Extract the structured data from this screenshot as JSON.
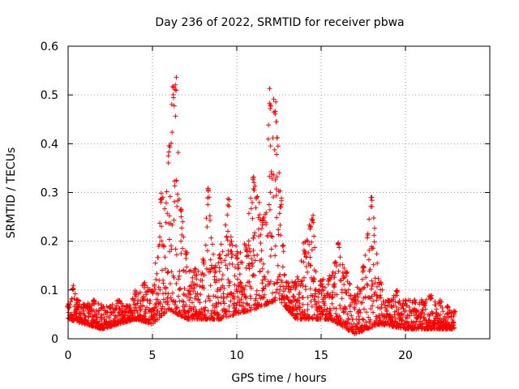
{
  "chart_data": {
    "type": "scatter",
    "title": "Day 236 of 2022, SRMTID for receiver pbwa",
    "xlabel": "GPS time / hours",
    "ylabel": "SRMTID / TECUs",
    "xlim": [
      0,
      25
    ],
    "ylim": [
      0,
      0.6
    ],
    "xticks": [
      0,
      5,
      10,
      15,
      20
    ],
    "yticks": [
      0,
      0.1,
      0.2,
      0.3,
      0.4,
      0.5,
      0.6
    ],
    "xtick_labels": [
      "0",
      "5",
      "10",
      "15",
      "20"
    ],
    "ytick_labels": [
      "0",
      "0.1",
      "0.2",
      "0.3",
      "0.4",
      "0.5",
      "0.6"
    ],
    "grid": true,
    "marker": "+",
    "color": "#ff0000",
    "series": [
      {
        "name": "SRMTID",
        "envelope_points": [
          {
            "x": 0.0,
            "y": 0.07
          },
          {
            "x": 0.3,
            "y": 0.11
          },
          {
            "x": 0.6,
            "y": 0.08
          },
          {
            "x": 1.0,
            "y": 0.07
          },
          {
            "x": 1.5,
            "y": 0.08
          },
          {
            "x": 2.0,
            "y": 0.07
          },
          {
            "x": 2.5,
            "y": 0.07
          },
          {
            "x": 3.0,
            "y": 0.08
          },
          {
            "x": 3.5,
            "y": 0.07
          },
          {
            "x": 4.0,
            "y": 0.1
          },
          {
            "x": 4.5,
            "y": 0.12
          },
          {
            "x": 5.0,
            "y": 0.1
          },
          {
            "x": 5.5,
            "y": 0.3
          },
          {
            "x": 6.0,
            "y": 0.4
          },
          {
            "x": 6.2,
            "y": 0.53
          },
          {
            "x": 6.4,
            "y": 0.54
          },
          {
            "x": 6.7,
            "y": 0.27
          },
          {
            "x": 7.0,
            "y": 0.18
          },
          {
            "x": 7.5,
            "y": 0.15
          },
          {
            "x": 8.0,
            "y": 0.17
          },
          {
            "x": 8.3,
            "y": 0.31
          },
          {
            "x": 8.7,
            "y": 0.15
          },
          {
            "x": 9.0,
            "y": 0.18
          },
          {
            "x": 9.5,
            "y": 0.3
          },
          {
            "x": 10.0,
            "y": 0.18
          },
          {
            "x": 10.5,
            "y": 0.2
          },
          {
            "x": 11.0,
            "y": 0.34
          },
          {
            "x": 11.5,
            "y": 0.25
          },
          {
            "x": 12.0,
            "y": 0.52
          },
          {
            "x": 12.3,
            "y": 0.49
          },
          {
            "x": 12.6,
            "y": 0.3
          },
          {
            "x": 13.0,
            "y": 0.12
          },
          {
            "x": 13.5,
            "y": 0.12
          },
          {
            "x": 14.0,
            "y": 0.2
          },
          {
            "x": 14.5,
            "y": 0.26
          },
          {
            "x": 15.0,
            "y": 0.12
          },
          {
            "x": 15.5,
            "y": 0.13
          },
          {
            "x": 16.0,
            "y": 0.2
          },
          {
            "x": 16.5,
            "y": 0.14
          },
          {
            "x": 17.0,
            "y": 0.09
          },
          {
            "x": 17.5,
            "y": 0.15
          },
          {
            "x": 18.0,
            "y": 0.29
          },
          {
            "x": 18.5,
            "y": 0.12
          },
          {
            "x": 19.0,
            "y": 0.08
          },
          {
            "x": 19.5,
            "y": 0.1
          },
          {
            "x": 20.0,
            "y": 0.08
          },
          {
            "x": 20.5,
            "y": 0.08
          },
          {
            "x": 21.0,
            "y": 0.08
          },
          {
            "x": 21.5,
            "y": 0.09
          },
          {
            "x": 22.0,
            "y": 0.08
          },
          {
            "x": 22.5,
            "y": 0.07
          },
          {
            "x": 22.9,
            "y": 0.06
          }
        ],
        "baseline_points": [
          {
            "x": 0.0,
            "y": 0.04
          },
          {
            "x": 2.0,
            "y": 0.02
          },
          {
            "x": 4.0,
            "y": 0.04
          },
          {
            "x": 5.0,
            "y": 0.03
          },
          {
            "x": 6.0,
            "y": 0.06
          },
          {
            "x": 7.0,
            "y": 0.04
          },
          {
            "x": 9.0,
            "y": 0.04
          },
          {
            "x": 11.0,
            "y": 0.06
          },
          {
            "x": 12.5,
            "y": 0.08
          },
          {
            "x": 13.5,
            "y": 0.04
          },
          {
            "x": 15.5,
            "y": 0.04
          },
          {
            "x": 17.0,
            "y": 0.01
          },
          {
            "x": 18.5,
            "y": 0.03
          },
          {
            "x": 20.0,
            "y": 0.02
          },
          {
            "x": 22.9,
            "y": 0.02
          }
        ],
        "x_start": 0.0,
        "x_end": 22.9,
        "point_count": 2200
      }
    ]
  }
}
